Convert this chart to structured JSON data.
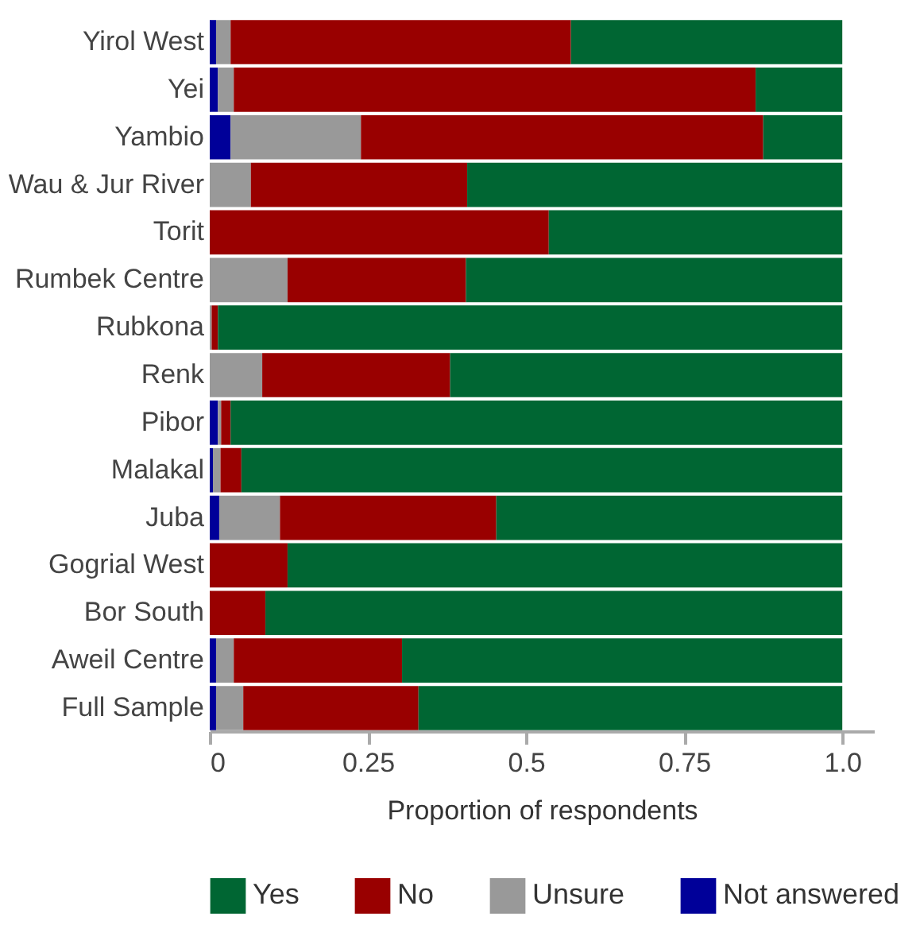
{
  "chart_data": {
    "type": "bar",
    "orientation": "horizontal",
    "stacked": true,
    "categories": [
      "Yirol West",
      "Yei",
      "Yambio",
      "Wau & Jur River",
      "Torit",
      "Rumbek Centre",
      "Rubkona",
      "Renk",
      "Pibor",
      "Malakal",
      "Juba",
      "Gogrial West",
      "Bor South",
      "Aweil Centre",
      "Full Sample"
    ],
    "series": [
      {
        "name": "Not answered",
        "color": "#000099",
        "values": [
          0.01,
          0.013,
          0.033,
          0,
          0,
          0,
          0,
          0,
          0.013,
          0.005,
          0.015,
          0,
          0,
          0.01,
          0.01
        ]
      },
      {
        "name": "Unsure",
        "color": "#999999",
        "values": [
          0.023,
          0.025,
          0.206,
          0.065,
          0,
          0.123,
          0.003,
          0.083,
          0.005,
          0.012,
          0.096,
          0,
          0,
          0.028,
          0.043
        ]
      },
      {
        "name": "No",
        "color": "#990000",
        "values": [
          0.538,
          0.825,
          0.636,
          0.342,
          0.536,
          0.282,
          0.01,
          0.297,
          0.015,
          0.033,
          0.342,
          0.123,
          0.088,
          0.266,
          0.277
        ]
      },
      {
        "name": "Yes",
        "color": "#006633",
        "values": [
          0.429,
          0.137,
          0.125,
          0.593,
          0.464,
          0.595,
          0.987,
          0.62,
          0.967,
          0.95,
          0.547,
          0.877,
          0.912,
          0.696,
          0.67
        ]
      }
    ],
    "xlabel": "Proportion of respondents",
    "xlim": [
      0,
      1.05
    ],
    "xticks": [
      0,
      0.25,
      0.5,
      0.75,
      {
        "value": 1,
        "label": "1.0"
      }
    ],
    "legend": "bottom"
  }
}
